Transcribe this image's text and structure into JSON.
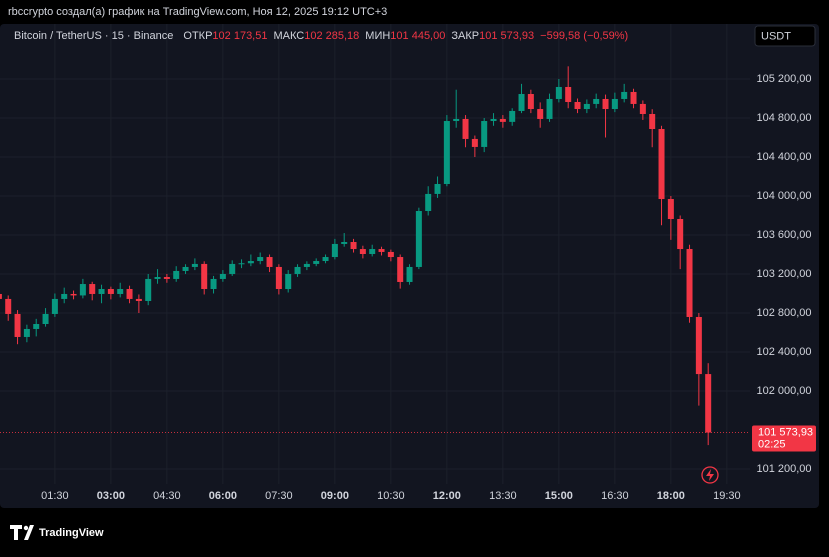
{
  "header": {
    "caption": "rbccrypto создал(а) график на TradingView.com, Ноя 12, 2025 19:12 UTC+3",
    "brand": "TradingView"
  },
  "chart_data": {
    "type": "candlestick",
    "title": "Bitcoin / TetherUS · 15 · Binance",
    "legend": [
      {
        "label": "ОТКР",
        "value": "102 173,51"
      },
      {
        "label": "МАКС",
        "value": "102 285,18"
      },
      {
        "label": "МИН",
        "value": "101 445,00"
      },
      {
        "label": "ЗАКР",
        "value": "101 573,93"
      }
    ],
    "change": "−599,58 (−0,59%)",
    "currency": "USDT",
    "last_price": {
      "value": 101573.93,
      "label": "101 573,93"
    },
    "countdown": "02:25",
    "up_color": "#089981",
    "down_color": "#f23645",
    "grid": true,
    "xlim": [
      0.03,
      20.12
    ],
    "ylim": [
      101046,
      105764
    ],
    "xticks": [
      {
        "value": 1.5,
        "label": "01:30"
      },
      {
        "value": 3,
        "label": "03:00"
      },
      {
        "value": 4.5,
        "label": "04:30"
      },
      {
        "value": 6,
        "label": "06:00"
      },
      {
        "value": 7.5,
        "label": "07:30"
      },
      {
        "value": 9,
        "label": "09:00"
      },
      {
        "value": 10.5,
        "label": "10:30"
      },
      {
        "value": 12,
        "label": "12:00"
      },
      {
        "value": 13.5,
        "label": "13:30"
      },
      {
        "value": 15,
        "label": "15:00"
      },
      {
        "value": 16.5,
        "label": "16:30"
      },
      {
        "value": 18,
        "label": "18:00"
      },
      {
        "value": 19.5,
        "label": "19:30"
      }
    ],
    "yticks": [
      {
        "value": 101200,
        "label": "101 200,00"
      },
      {
        "value": 102000,
        "label": "102 000,00"
      },
      {
        "value": 102400,
        "label": "102 400,00"
      },
      {
        "value": 102800,
        "label": "102 800,00"
      },
      {
        "value": 103200,
        "label": "103 200,00"
      },
      {
        "value": 103600,
        "label": "103 600,00"
      },
      {
        "value": 104000,
        "label": "104 000,00"
      },
      {
        "value": 104400,
        "label": "104 400,00"
      },
      {
        "value": 104800,
        "label": "104 800,00"
      },
      {
        "value": 105200,
        "label": "105 200,00"
      }
    ],
    "x": [
      0,
      0.25,
      0.5,
      0.75,
      1,
      1.25,
      1.5,
      1.75,
      2,
      2.25,
      2.5,
      2.75,
      3,
      3.25,
      3.5,
      3.75,
      4,
      4.25,
      4.5,
      4.75,
      5,
      5.25,
      5.5,
      5.75,
      6,
      6.25,
      6.5,
      6.75,
      7,
      7.25,
      7.5,
      7.75,
      8,
      8.25,
      8.5,
      8.75,
      9,
      9.25,
      9.5,
      9.75,
      10,
      10.25,
      10.5,
      10.75,
      11,
      11.25,
      11.5,
      11.75,
      12,
      12.25,
      12.5,
      12.75,
      13,
      13.25,
      13.5,
      13.75,
      14,
      14.25,
      14.5,
      14.75,
      15,
      15.25,
      15.5,
      15.75,
      16,
      16.25,
      16.5,
      16.75,
      17,
      17.25,
      17.5,
      17.75,
      18,
      18.25,
      18.5,
      18.75,
      19
    ],
    "open": [
      102995,
      102944,
      102790,
      102554,
      102636,
      102687,
      102790,
      102944,
      102995,
      102980,
      103097,
      102995,
      103046,
      102995,
      103046,
      102944,
      102923,
      103149,
      103169,
      103149,
      103231,
      103272,
      103303,
      103046,
      103149,
      103200,
      103303,
      103310,
      103333,
      103374,
      103272,
      103046,
      103200,
      103272,
      103303,
      103333,
      103374,
      103508,
      103528,
      103456,
      103405,
      103456,
      103426,
      103374,
      103118,
      103272,
      103846,
      104021,
      104123,
      104769,
      104790,
      104585,
      104503,
      104769,
      104790,
      104760,
      104872,
      105046,
      104892,
      104790,
      104995,
      105118,
      104964,
      104892,
      104944,
      104995,
      104892,
      104995,
      105067,
      104944,
      104841,
      104687,
      103969,
      103764,
      103456,
      102759,
      102173.51
    ],
    "high": [
      103050,
      102980,
      102830,
      102680,
      102740,
      102850,
      103000,
      103060,
      103030,
      103150,
      103120,
      103090,
      103070,
      103110,
      103080,
      102990,
      103200,
      103250,
      103200,
      103280,
      103300,
      103360,
      103330,
      103180,
      103240,
      103340,
      103350,
      103400,
      103420,
      103400,
      103300,
      103240,
      103300,
      103330,
      103360,
      103400,
      103560,
      103620,
      103560,
      103490,
      103500,
      103480,
      103450,
      103400,
      103300,
      103880,
      104100,
      104200,
      104830,
      105090,
      104830,
      104620,
      104800,
      104850,
      104830,
      104900,
      105150,
      105090,
      104960,
      105050,
      105200,
      105330,
      105000,
      104990,
      105050,
      105040,
      105060,
      105150,
      105100,
      104980,
      104890,
      104720,
      104000,
      103800,
      103500,
      102800,
      102285.18
    ],
    "low": [
      102900,
      102720,
      102480,
      102500,
      102560,
      102660,
      102760,
      102900,
      102940,
      102950,
      102930,
      102900,
      102940,
      102960,
      102900,
      102800,
      102880,
      103100,
      103110,
      103120,
      103200,
      103240,
      102990,
      103000,
      103120,
      103180,
      103260,
      103280,
      103300,
      103220,
      102990,
      103010,
      103170,
      103240,
      103280,
      103310,
      103350,
      103480,
      103420,
      103360,
      103380,
      103390,
      103330,
      103050,
      103090,
      103250,
      103800,
      103980,
      104100,
      104700,
      104500,
      104400,
      104450,
      104720,
      104700,
      104720,
      104850,
      104850,
      104700,
      104760,
      104960,
      104900,
      104850,
      104850,
      104900,
      104600,
      104860,
      104960,
      104900,
      104780,
      104500,
      103700,
      103550,
      103250,
      102700,
      101850,
      101445
    ],
    "close": [
      102944,
      102790,
      102554,
      102636,
      102687,
      102790,
      102944,
      102995,
      102980,
      103097,
      102995,
      103046,
      102995,
      103046,
      102944,
      102923,
      103149,
      103169,
      103149,
      103231,
      103272,
      103303,
      103046,
      103149,
      103200,
      103303,
      103310,
      103333,
      103374,
      103272,
      103046,
      103200,
      103272,
      103303,
      103333,
      103374,
      103508,
      103528,
      103456,
      103405,
      103456,
      103426,
      103374,
      103118,
      103272,
      103846,
      104021,
      104123,
      104769,
      104790,
      104585,
      104503,
      104769,
      104790,
      104760,
      104872,
      105046,
      104892,
      104790,
      104995,
      105118,
      104964,
      104892,
      104944,
      104995,
      104892,
      104995,
      105067,
      104944,
      104841,
      104687,
      103969,
      103764,
      103456,
      102759,
      102173.51,
      101573.93
    ]
  }
}
